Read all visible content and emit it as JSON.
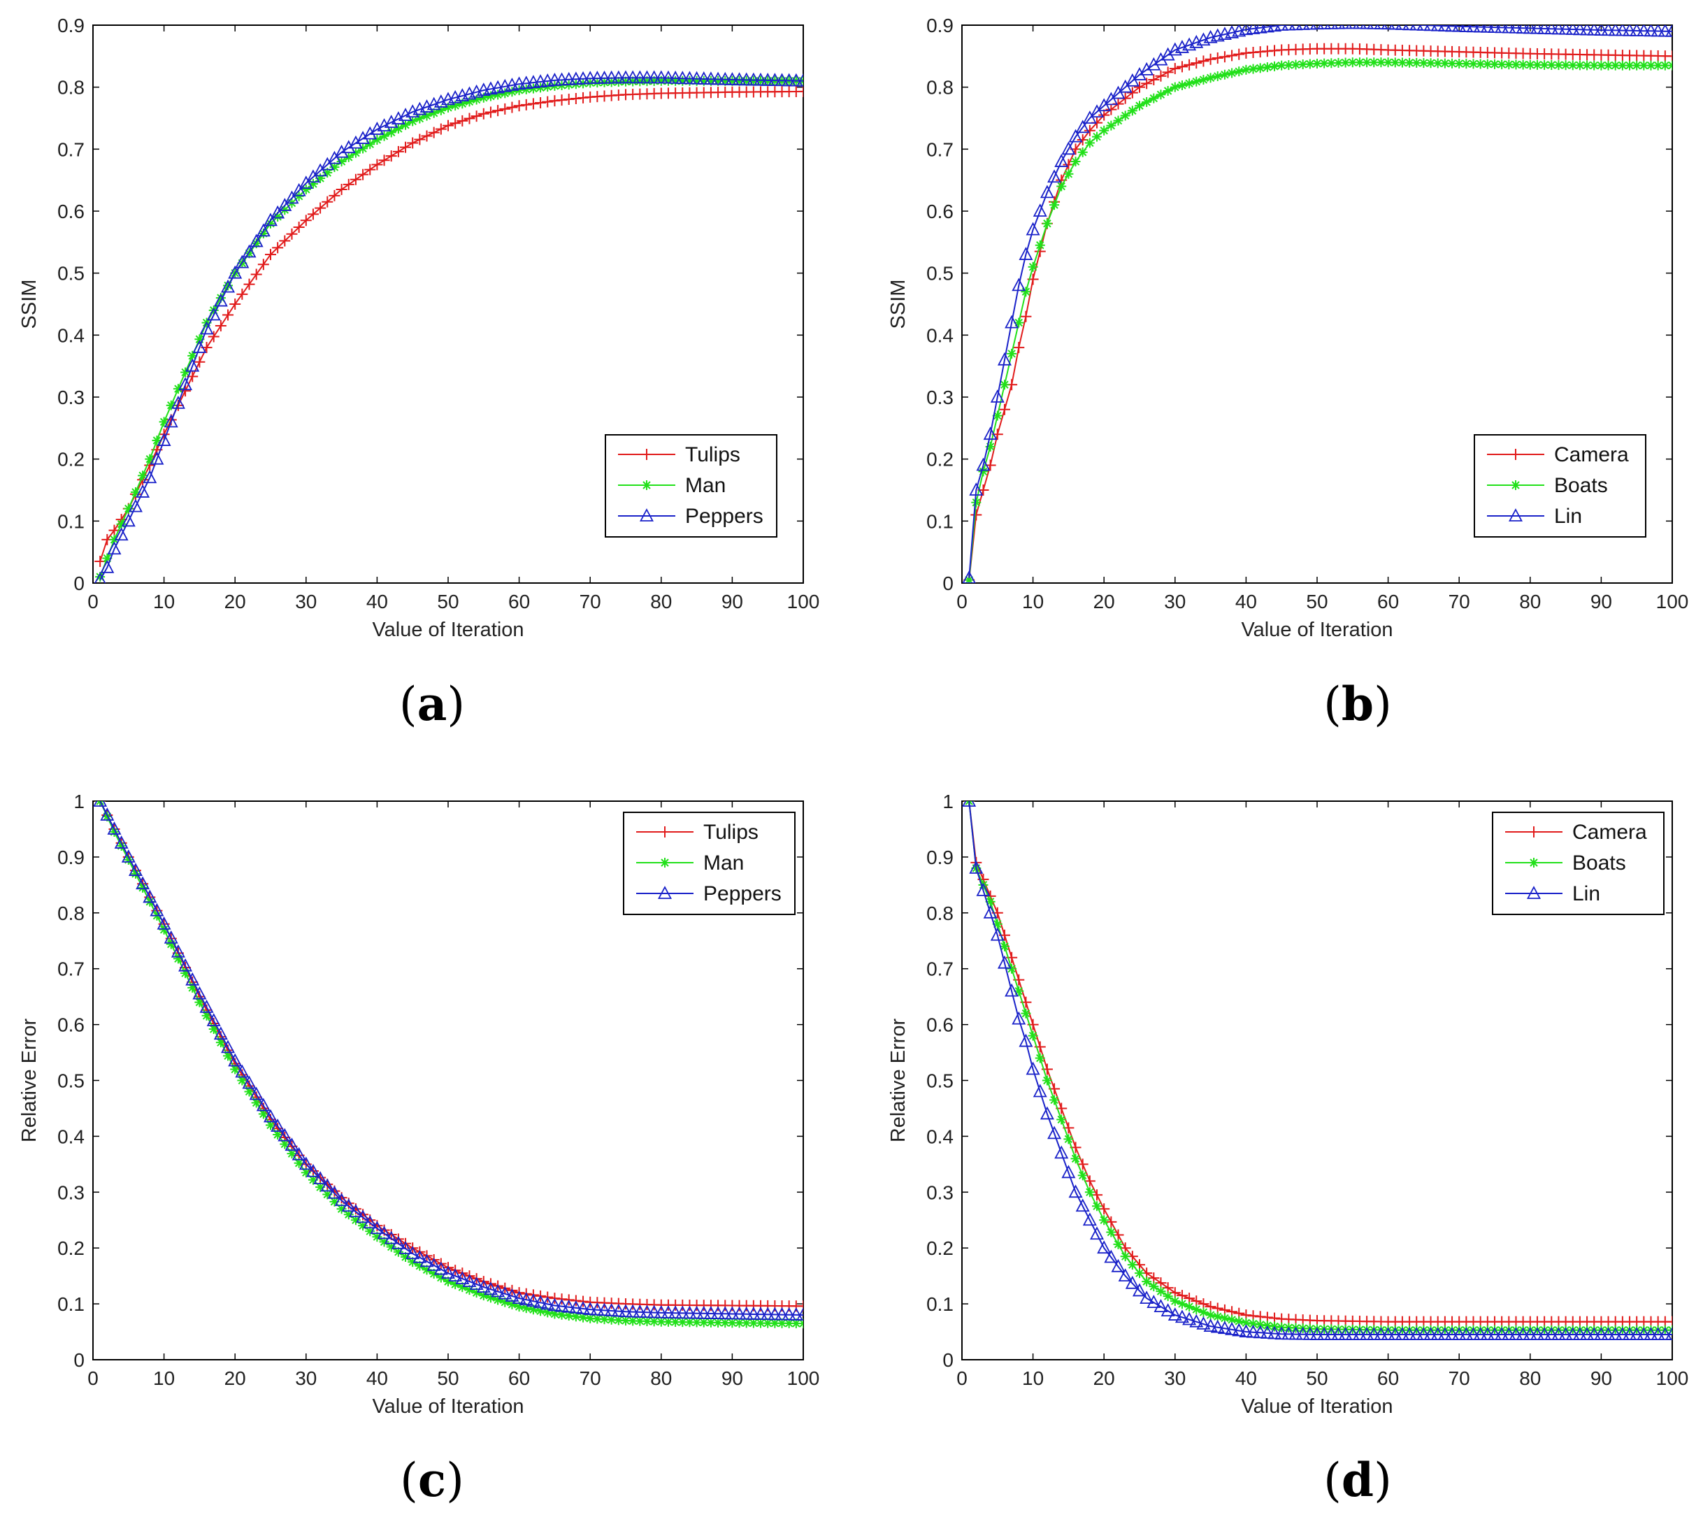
{
  "figure": {
    "panel_order": [
      "a",
      "b",
      "c",
      "d"
    ]
  },
  "chart_data": [
    {
      "id": "a",
      "type": "line",
      "caption_open": "(",
      "caption_letter": "a",
      "caption_close": ")",
      "xlabel": "Value of Iteration",
      "ylabel": "SSIM",
      "xlim": [
        0,
        100
      ],
      "ylim": [
        0,
        0.9
      ],
      "xticks": [
        0,
        10,
        20,
        30,
        40,
        50,
        60,
        70,
        80,
        90,
        100
      ],
      "yticks": [
        0,
        0.1,
        0.2,
        0.3,
        0.4,
        0.5,
        0.6,
        0.7,
        0.8,
        0.9
      ],
      "xtick_labels": [
        "0",
        "10",
        "20",
        "30",
        "40",
        "50",
        "60",
        "70",
        "80",
        "90",
        "100"
      ],
      "ytick_labels": [
        "0",
        "0.1",
        "0.2",
        "0.3",
        "0.4",
        "0.5",
        "0.6",
        "0.7",
        "0.8",
        "0.9"
      ],
      "legend_position": "bottom-right",
      "grid": false,
      "series": [
        {
          "name": "Tulips",
          "color": "#e11b1b",
          "marker": "plus",
          "x": [
            1,
            2,
            3,
            5,
            8,
            10,
            13,
            16,
            20,
            25,
            30,
            35,
            40,
            45,
            50,
            55,
            60,
            65,
            70,
            75,
            80,
            90,
            100
          ],
          "y": [
            0.035,
            0.07,
            0.085,
            0.12,
            0.19,
            0.24,
            0.31,
            0.38,
            0.45,
            0.53,
            0.585,
            0.635,
            0.675,
            0.71,
            0.738,
            0.757,
            0.77,
            0.778,
            0.784,
            0.788,
            0.79,
            0.792,
            0.793
          ]
        },
        {
          "name": "Man",
          "color": "#22e01a",
          "marker": "asterisk",
          "x": [
            1,
            2,
            3,
            5,
            8,
            10,
            13,
            16,
            20,
            25,
            30,
            35,
            40,
            45,
            50,
            55,
            60,
            65,
            70,
            75,
            80,
            90,
            100
          ],
          "y": [
            0.01,
            0.04,
            0.07,
            0.12,
            0.2,
            0.26,
            0.34,
            0.42,
            0.5,
            0.58,
            0.635,
            0.68,
            0.715,
            0.745,
            0.767,
            0.783,
            0.795,
            0.802,
            0.807,
            0.809,
            0.81,
            0.81,
            0.81
          ]
        },
        {
          "name": "Peppers",
          "color": "#1a22c9",
          "marker": "triangle",
          "x": [
            1,
            2,
            3,
            5,
            8,
            10,
            13,
            16,
            20,
            25,
            30,
            35,
            40,
            45,
            50,
            55,
            60,
            65,
            70,
            75,
            80,
            90,
            100
          ],
          "y": [
            0.005,
            0.025,
            0.055,
            0.1,
            0.17,
            0.23,
            0.32,
            0.41,
            0.5,
            0.585,
            0.645,
            0.695,
            0.732,
            0.76,
            0.78,
            0.795,
            0.805,
            0.811,
            0.814,
            0.815,
            0.815,
            0.812,
            0.81
          ]
        }
      ]
    },
    {
      "id": "b",
      "type": "line",
      "caption_open": "(",
      "caption_letter": "b",
      "caption_close": ")",
      "xlabel": "Value of Iteration",
      "ylabel": "SSIM",
      "xlim": [
        0,
        100
      ],
      "ylim": [
        0,
        0.9
      ],
      "xticks": [
        0,
        10,
        20,
        30,
        40,
        50,
        60,
        70,
        80,
        90,
        100
      ],
      "yticks": [
        0,
        0.1,
        0.2,
        0.3,
        0.4,
        0.5,
        0.6,
        0.7,
        0.8,
        0.9
      ],
      "xtick_labels": [
        "0",
        "10",
        "20",
        "30",
        "40",
        "50",
        "60",
        "70",
        "80",
        "90",
        "100"
      ],
      "ytick_labels": [
        "0",
        "0.1",
        "0.2",
        "0.3",
        "0.4",
        "0.5",
        "0.6",
        "0.7",
        "0.8",
        "0.9"
      ],
      "legend_position": "bottom-right",
      "grid": false,
      "series": [
        {
          "name": "Camera",
          "color": "#e11b1b",
          "marker": "plus",
          "x": [
            1,
            2,
            3,
            4,
            5,
            6,
            7,
            8,
            9,
            10,
            12,
            14,
            16,
            18,
            20,
            25,
            30,
            35,
            40,
            45,
            50,
            55,
            60,
            70,
            80,
            90,
            100
          ],
          "y": [
            0.005,
            0.11,
            0.15,
            0.19,
            0.24,
            0.28,
            0.32,
            0.38,
            0.43,
            0.49,
            0.58,
            0.65,
            0.7,
            0.73,
            0.755,
            0.8,
            0.83,
            0.845,
            0.855,
            0.86,
            0.862,
            0.862,
            0.86,
            0.857,
            0.854,
            0.852,
            0.85
          ]
        },
        {
          "name": "Boats",
          "color": "#22e01a",
          "marker": "asterisk",
          "x": [
            1,
            2,
            3,
            4,
            5,
            6,
            7,
            8,
            9,
            10,
            12,
            14,
            16,
            18,
            20,
            25,
            30,
            35,
            40,
            45,
            50,
            55,
            60,
            70,
            80,
            90,
            100
          ],
          "y": [
            0.005,
            0.13,
            0.18,
            0.22,
            0.27,
            0.32,
            0.37,
            0.42,
            0.47,
            0.51,
            0.58,
            0.64,
            0.68,
            0.71,
            0.73,
            0.77,
            0.8,
            0.815,
            0.828,
            0.835,
            0.838,
            0.84,
            0.84,
            0.838,
            0.836,
            0.835,
            0.835
          ]
        },
        {
          "name": "Lin",
          "color": "#1a22c9",
          "marker": "triangle",
          "x": [
            1,
            2,
            3,
            4,
            5,
            6,
            7,
            8,
            9,
            10,
            12,
            14,
            16,
            18,
            20,
            25,
            30,
            35,
            40,
            45,
            50,
            55,
            60,
            70,
            80,
            90,
            100
          ],
          "y": [
            0.008,
            0.15,
            0.19,
            0.24,
            0.3,
            0.36,
            0.42,
            0.48,
            0.53,
            0.57,
            0.63,
            0.68,
            0.72,
            0.75,
            0.77,
            0.82,
            0.86,
            0.88,
            0.893,
            0.9,
            0.902,
            0.903,
            0.902,
            0.898,
            0.895,
            0.892,
            0.89
          ]
        }
      ]
    },
    {
      "id": "c",
      "type": "line",
      "caption_open": "(",
      "caption_letter": "c",
      "caption_close": ")",
      "xlabel": "Value of Iteration",
      "ylabel": "Relative Error",
      "xlim": [
        0,
        100
      ],
      "ylim": [
        0,
        1
      ],
      "xticks": [
        0,
        10,
        20,
        30,
        40,
        50,
        60,
        70,
        80,
        90,
        100
      ],
      "yticks": [
        0,
        0.1,
        0.2,
        0.3,
        0.4,
        0.5,
        0.6,
        0.7,
        0.8,
        0.9,
        1
      ],
      "xtick_labels": [
        "0",
        "10",
        "20",
        "30",
        "40",
        "50",
        "60",
        "70",
        "80",
        "90",
        "100"
      ],
      "ytick_labels": [
        "0",
        "0.1",
        "0.2",
        "0.3",
        "0.4",
        "0.5",
        "0.6",
        "0.7",
        "0.8",
        "0.9",
        "1"
      ],
      "legend_position": "top-right",
      "grid": false,
      "series": [
        {
          "name": "Tulips",
          "color": "#e11b1b",
          "marker": "plus",
          "x": [
            1,
            3,
            5,
            10,
            15,
            20,
            25,
            30,
            35,
            40,
            45,
            50,
            55,
            60,
            65,
            70,
            75,
            80,
            90,
            100
          ],
          "y": [
            1.0,
            0.95,
            0.9,
            0.78,
            0.65,
            0.53,
            0.43,
            0.35,
            0.29,
            0.24,
            0.2,
            0.165,
            0.14,
            0.12,
            0.11,
            0.103,
            0.1,
            0.098,
            0.097,
            0.096
          ]
        },
        {
          "name": "Man",
          "color": "#22e01a",
          "marker": "asterisk",
          "x": [
            1,
            3,
            5,
            10,
            15,
            20,
            25,
            30,
            35,
            40,
            45,
            50,
            55,
            60,
            65,
            70,
            75,
            80,
            90,
            100
          ],
          "y": [
            1.0,
            0.945,
            0.895,
            0.77,
            0.64,
            0.52,
            0.42,
            0.335,
            0.27,
            0.22,
            0.175,
            0.14,
            0.115,
            0.095,
            0.082,
            0.074,
            0.07,
            0.068,
            0.066,
            0.065
          ]
        },
        {
          "name": "Peppers",
          "color": "#1a22c9",
          "marker": "triangle",
          "x": [
            1,
            3,
            5,
            10,
            15,
            20,
            25,
            30,
            35,
            40,
            45,
            50,
            55,
            60,
            65,
            70,
            75,
            80,
            90,
            100
          ],
          "y": [
            1.0,
            0.95,
            0.9,
            0.78,
            0.655,
            0.535,
            0.435,
            0.35,
            0.285,
            0.235,
            0.19,
            0.155,
            0.13,
            0.11,
            0.097,
            0.09,
            0.086,
            0.084,
            0.082,
            0.08
          ]
        }
      ]
    },
    {
      "id": "d",
      "type": "line",
      "caption_open": "(",
      "caption_letter": "d",
      "caption_close": ")",
      "xlabel": "Value of Iteration",
      "ylabel": "Relative Error",
      "xlim": [
        0,
        100
      ],
      "ylim": [
        0,
        1
      ],
      "xticks": [
        0,
        10,
        20,
        30,
        40,
        50,
        60,
        70,
        80,
        90,
        100
      ],
      "yticks": [
        0,
        0.1,
        0.2,
        0.3,
        0.4,
        0.5,
        0.6,
        0.7,
        0.8,
        0.9,
        1
      ],
      "xtick_labels": [
        "0",
        "10",
        "20",
        "30",
        "40",
        "50",
        "60",
        "70",
        "80",
        "90",
        "100"
      ],
      "ytick_labels": [
        "0",
        "0.1",
        "0.2",
        "0.3",
        "0.4",
        "0.5",
        "0.6",
        "0.7",
        "0.8",
        "0.9",
        "1"
      ],
      "legend_position": "top-right",
      "grid": false,
      "series": [
        {
          "name": "Camera",
          "color": "#e11b1b",
          "marker": "plus",
          "x": [
            1,
            2,
            3,
            4,
            5,
            6,
            7,
            8,
            9,
            10,
            12,
            14,
            16,
            18,
            20,
            23,
            26,
            30,
            35,
            40,
            45,
            50,
            60,
            70,
            80,
            90,
            100
          ],
          "y": [
            1.0,
            0.89,
            0.86,
            0.83,
            0.8,
            0.76,
            0.72,
            0.68,
            0.64,
            0.6,
            0.52,
            0.45,
            0.38,
            0.32,
            0.27,
            0.2,
            0.155,
            0.12,
            0.095,
            0.08,
            0.073,
            0.07,
            0.068,
            0.068,
            0.068,
            0.068,
            0.068
          ]
        },
        {
          "name": "Boats",
          "color": "#22e01a",
          "marker": "asterisk",
          "x": [
            1,
            2,
            3,
            4,
            5,
            6,
            7,
            8,
            9,
            10,
            12,
            14,
            16,
            18,
            20,
            23,
            26,
            30,
            35,
            40,
            45,
            50,
            60,
            70,
            80,
            90,
            100
          ],
          "y": [
            1.0,
            0.88,
            0.85,
            0.82,
            0.78,
            0.74,
            0.7,
            0.66,
            0.62,
            0.58,
            0.5,
            0.43,
            0.36,
            0.3,
            0.25,
            0.185,
            0.14,
            0.105,
            0.08,
            0.066,
            0.058,
            0.055,
            0.053,
            0.053,
            0.053,
            0.053,
            0.053
          ]
        },
        {
          "name": "Lin",
          "color": "#1a22c9",
          "marker": "triangle",
          "x": [
            1,
            2,
            3,
            4,
            5,
            6,
            7,
            8,
            9,
            10,
            12,
            14,
            16,
            18,
            20,
            23,
            26,
            30,
            35,
            40,
            45,
            50,
            60,
            70,
            80,
            90,
            100
          ],
          "y": [
            1.0,
            0.88,
            0.84,
            0.8,
            0.76,
            0.71,
            0.66,
            0.61,
            0.57,
            0.52,
            0.44,
            0.37,
            0.3,
            0.25,
            0.2,
            0.15,
            0.11,
            0.08,
            0.06,
            0.05,
            0.046,
            0.045,
            0.045,
            0.045,
            0.045,
            0.045,
            0.045
          ]
        }
      ]
    }
  ]
}
